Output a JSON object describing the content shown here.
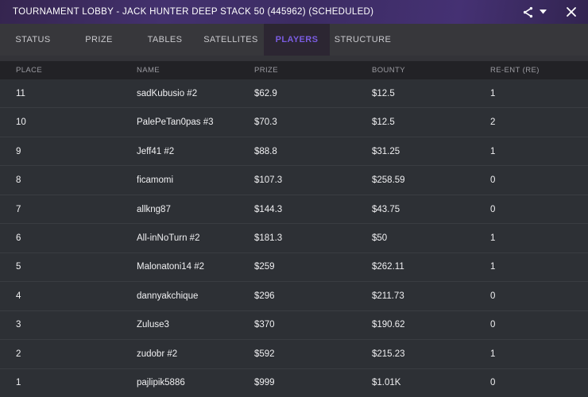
{
  "window": {
    "title": "TOURNAMENT LOBBY - JACK HUNTER DEEP STACK 50 (445962) (SCHEDULED)"
  },
  "icons": {
    "share": "share-icon",
    "dropdown": "chevron-down-icon",
    "close": "close-icon"
  },
  "colors": {
    "accent_purple": "#7a5ce0",
    "titlebar_purple": "#43316e",
    "tabbar_bg": "#37373b",
    "active_tab_bg": "#2c2632",
    "header_bg": "#222226",
    "row_bg": "#2d3035"
  },
  "tabs": [
    {
      "label": "STATUS",
      "active": false
    },
    {
      "label": "PRIZE",
      "active": false
    },
    {
      "label": "TABLES",
      "active": false
    },
    {
      "label": "SATELLITES",
      "active": false
    },
    {
      "label": "PLAYERS",
      "active": true
    },
    {
      "label": "STRUCTURE",
      "active": false
    }
  ],
  "table": {
    "columns": [
      "PLACE",
      "NAME",
      "PRIZE",
      "BOUNTY",
      "RE-ENT (RE)"
    ],
    "rows": [
      {
        "place": "11",
        "name": "sadKubusio #2",
        "prize": "$62.9",
        "bounty": "$12.5",
        "reent": "1"
      },
      {
        "place": "10",
        "name": "PalePeTan0pas #3",
        "prize": "$70.3",
        "bounty": "$12.5",
        "reent": "2"
      },
      {
        "place": "9",
        "name": "Jeff41 #2",
        "prize": "$88.8",
        "bounty": "$31.25",
        "reent": "1"
      },
      {
        "place": "8",
        "name": "ficamomi",
        "prize": "$107.3",
        "bounty": "$258.59",
        "reent": "0"
      },
      {
        "place": "7",
        "name": "allkng87",
        "prize": "$144.3",
        "bounty": "$43.75",
        "reent": "0"
      },
      {
        "place": "6",
        "name": "All-inNoTurn #2",
        "prize": "$181.3",
        "bounty": "$50",
        "reent": "1"
      },
      {
        "place": "5",
        "name": "Malonatoni14 #2",
        "prize": "$259",
        "bounty": "$262.11",
        "reent": "1"
      },
      {
        "place": "4",
        "name": "dannyakchique",
        "prize": "$296",
        "bounty": "$211.73",
        "reent": "0"
      },
      {
        "place": "3",
        "name": "Zuluse3",
        "prize": "$370",
        "bounty": "$190.62",
        "reent": "0"
      },
      {
        "place": "2",
        "name": "zudobr #2",
        "prize": "$592",
        "bounty": "$215.23",
        "reent": "1"
      },
      {
        "place": "1",
        "name": "pajlipik5886",
        "prize": "$999",
        "bounty": "$1.01K",
        "reent": "0"
      }
    ]
  }
}
